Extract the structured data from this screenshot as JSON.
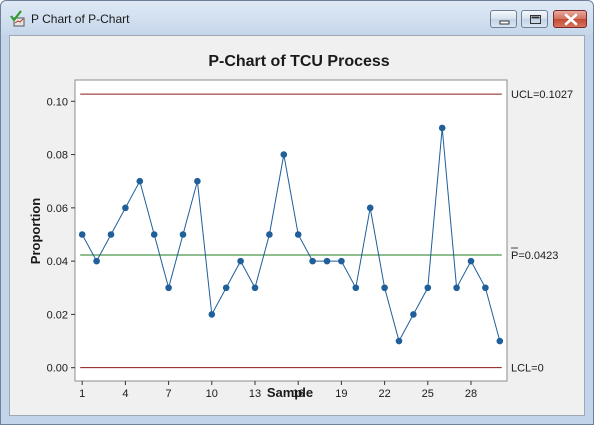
{
  "window": {
    "title": "P Chart of P-Chart",
    "app_icon": "checkmark-graph-icon",
    "buttons": {
      "minimize": "minimize-icon",
      "maximize": "maximize-icon",
      "close": "close-icon"
    }
  },
  "colors": {
    "series": "#1f5f9a",
    "limit_line": "#8b1a1a",
    "center_line": "#1e7b1e",
    "plot_background": "#ffffff",
    "chart_background": "#f0f0f0"
  },
  "chart_data": {
    "type": "line",
    "title": "P-Chart of TCU Process",
    "xlabel": "Sample",
    "ylabel": "Proportion",
    "xlim": [
      0.5,
      30.5
    ],
    "ylim": [
      -0.005,
      0.108
    ],
    "x_ticks": [
      1,
      4,
      7,
      10,
      13,
      16,
      19,
      22,
      25,
      28
    ],
    "y_ticks": [
      0.0,
      0.02,
      0.04,
      0.06,
      0.08,
      0.1
    ],
    "y_tick_labels": [
      "0.00",
      "0.02",
      "0.04",
      "0.06",
      "0.08",
      "0.10"
    ],
    "grid": false,
    "x": [
      1,
      2,
      3,
      4,
      5,
      6,
      7,
      8,
      9,
      10,
      11,
      12,
      13,
      14,
      15,
      16,
      17,
      18,
      19,
      20,
      21,
      22,
      23,
      24,
      25,
      26,
      27,
      28,
      29,
      30
    ],
    "values": [
      0.05,
      0.04,
      0.05,
      0.06,
      0.07,
      0.05,
      0.03,
      0.05,
      0.07,
      0.02,
      0.03,
      0.04,
      0.03,
      0.05,
      0.08,
      0.05,
      0.04,
      0.04,
      0.04,
      0.03,
      0.06,
      0.03,
      0.01,
      0.02,
      0.03,
      0.09,
      0.03,
      0.04,
      0.03,
      0.01
    ],
    "control_limits": {
      "ucl": {
        "value": 0.1027,
        "label": "UCL=0.1027"
      },
      "center": {
        "value": 0.0423,
        "label": "P=0.0423"
      },
      "lcl": {
        "value": 0,
        "label": "LCL=0"
      }
    }
  }
}
